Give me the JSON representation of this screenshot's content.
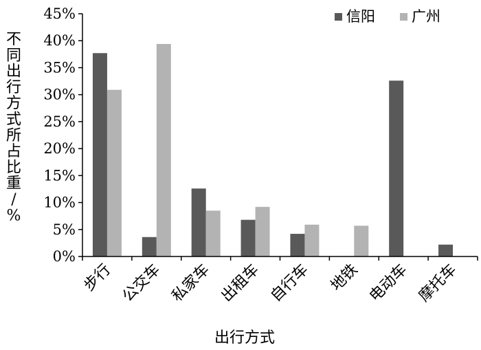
{
  "chart_data": {
    "type": "bar",
    "xlabel": "出行方式",
    "ylabel": "不同出行方式所占比重/%",
    "ylim": [
      0,
      45
    ],
    "ytick_step": 5,
    "ytick_suffix": "%",
    "grid": false,
    "legend_position": "top-right",
    "categories": [
      "步行",
      "公交车",
      "私家车",
      "出租车",
      "自行车",
      "地铁",
      "电动车",
      "摩托车"
    ],
    "series": [
      {
        "name": "信阳",
        "color": "#595959",
        "values": [
          37.7,
          3.6,
          12.6,
          6.8,
          4.2,
          0,
          32.6,
          2.2
        ]
      },
      {
        "name": "广州",
        "color": "#b3b3b3",
        "values": [
          30.9,
          39.4,
          8.5,
          9.2,
          5.9,
          5.7,
          0,
          0
        ]
      }
    ]
  }
}
